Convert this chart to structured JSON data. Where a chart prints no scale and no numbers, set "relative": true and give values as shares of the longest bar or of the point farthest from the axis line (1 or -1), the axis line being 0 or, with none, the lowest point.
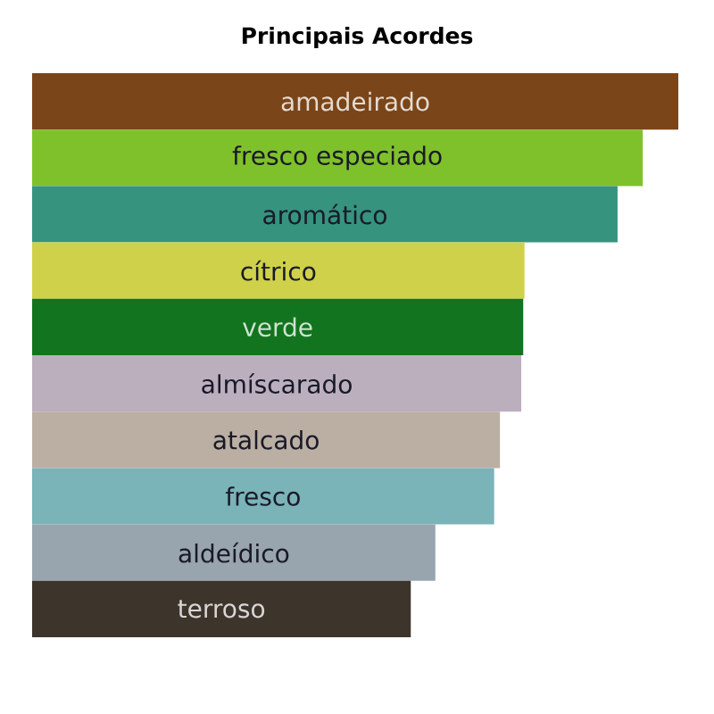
{
  "chart_data": {
    "type": "bar",
    "orientation": "horizontal",
    "relative": true,
    "title": "Principais Acordes",
    "categories": [
      "amadeirado",
      "fresco especiado",
      "aromático",
      "cítrico",
      "verde",
      "almíscarado",
      "atalcado",
      "fresco",
      "aldeídico",
      "terroso"
    ],
    "values": [
      1,
      0.945,
      0.906,
      0.762,
      0.76,
      0.757,
      0.724,
      0.715,
      0.624,
      0.586
    ],
    "colors": [
      "#7a4518",
      "#7fc12a",
      "#35937e",
      "#cfd14a",
      "#12741e",
      "#bbafbe",
      "#bbafa4",
      "#7ab3b8",
      "#98a5ae",
      "#3d342b"
    ]
  }
}
